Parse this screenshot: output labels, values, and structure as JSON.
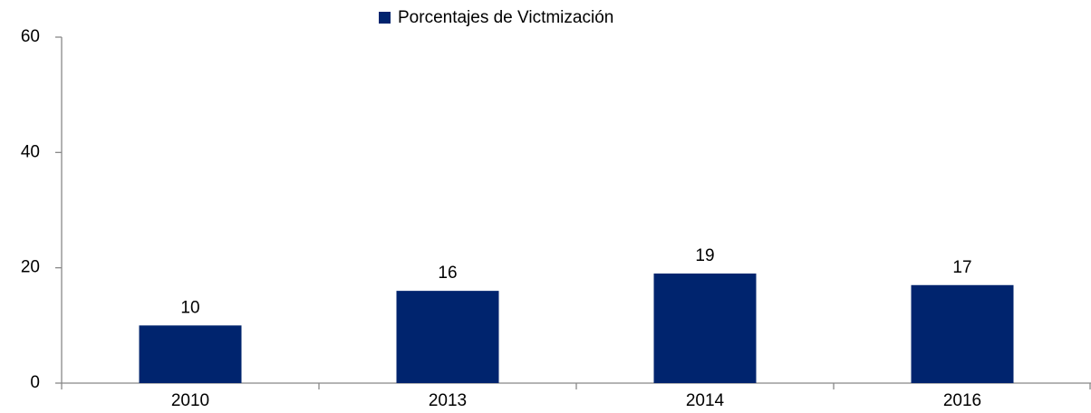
{
  "chart_data": {
    "type": "bar",
    "categories": [
      "2010",
      "2013",
      "2014",
      "2016"
    ],
    "series": [
      {
        "name": "Porcentajes de Victmización",
        "color": "#00246e",
        "values": [
          10,
          16,
          19,
          17
        ]
      }
    ],
    "ylim": [
      0,
      60
    ],
    "yticks": [
      0,
      20,
      40,
      60
    ]
  }
}
